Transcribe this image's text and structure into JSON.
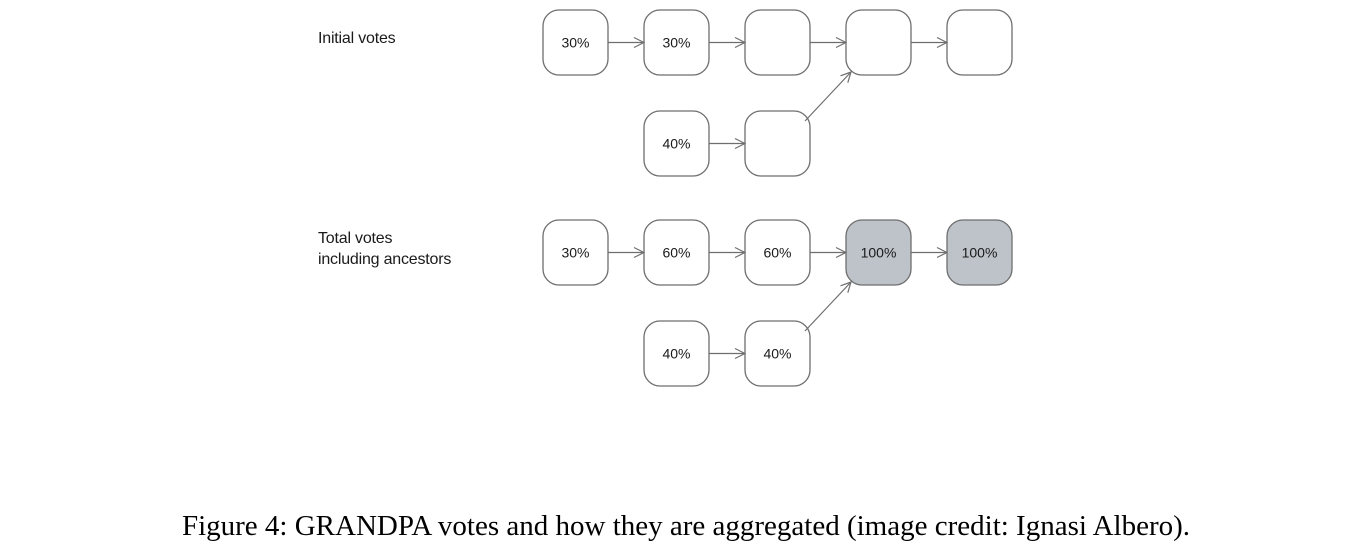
{
  "diagram": {
    "initial_label": "Initial votes",
    "total_label_line1": "Total votes",
    "total_label_line2": "including ancestors",
    "colors": {
      "node_fill": "#ffffff",
      "node_highlight_fill": "#bdc3c9",
      "node_stroke": "#6e6e6e",
      "arrow": "#6e6e6e"
    },
    "graphs": [
      {
        "id": "initial",
        "top_chain": [
          "30%",
          "30%",
          "",
          "",
          ""
        ],
        "branch_chain": [
          "40%",
          ""
        ],
        "highlighted": []
      },
      {
        "id": "total",
        "top_chain": [
          "30%",
          "60%",
          "60%",
          "100%",
          "100%"
        ],
        "branch_chain": [
          "40%",
          "40%"
        ],
        "highlighted": [
          3,
          4
        ]
      }
    ]
  },
  "caption": "Figure 4: GRANDPA votes and how they are aggregated (image credit: Ignasi Albero)."
}
